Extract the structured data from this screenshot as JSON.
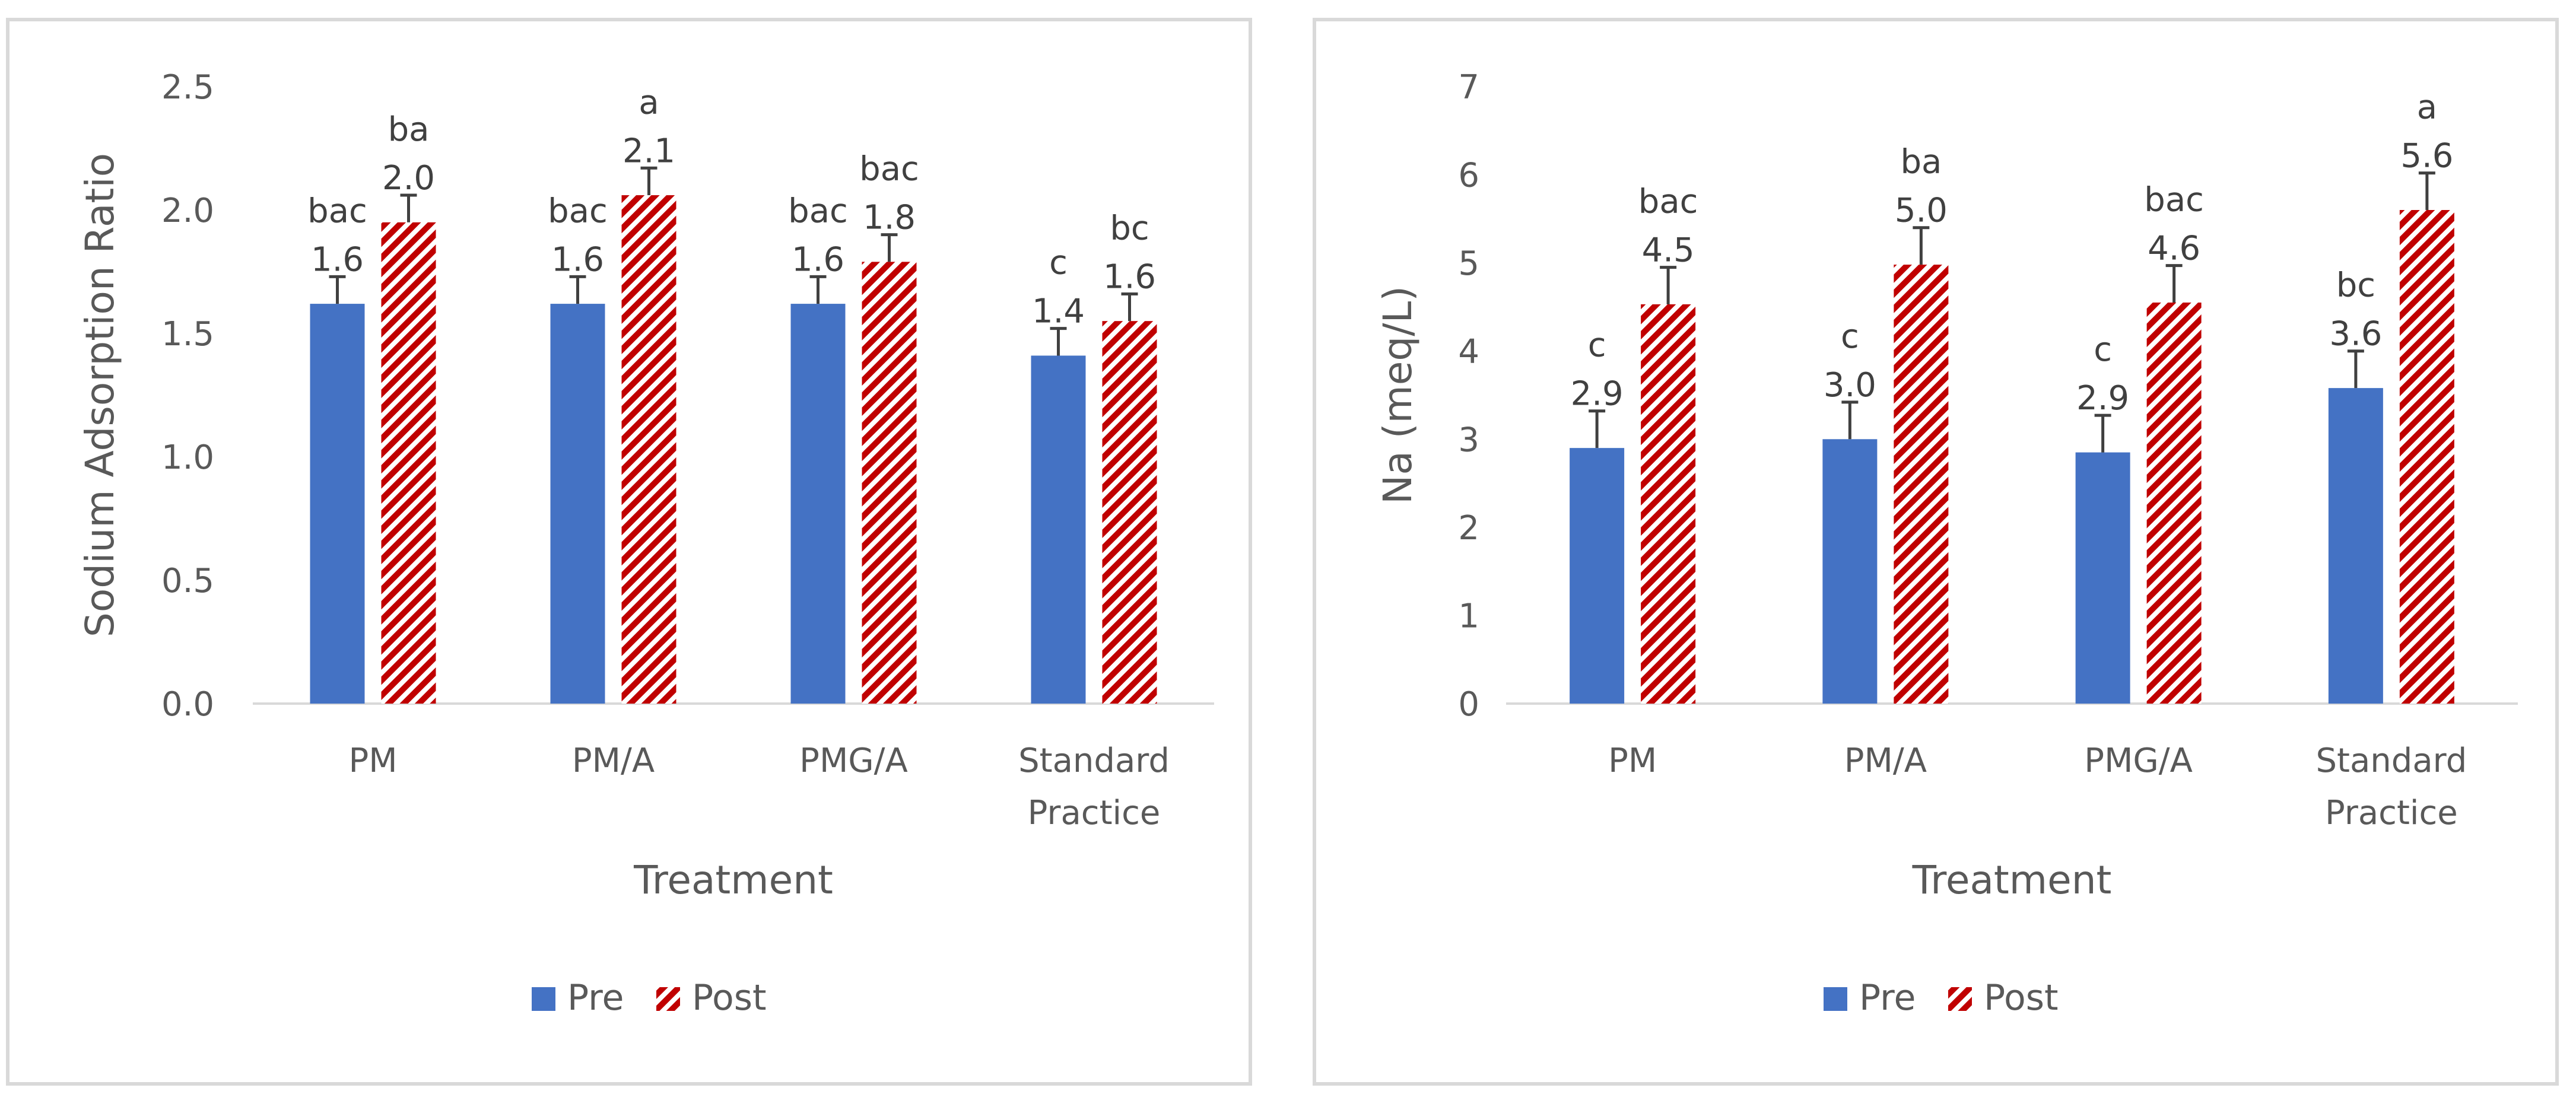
{
  "chart_data": [
    {
      "type": "bar",
      "title": "",
      "xlabel": "Treatment",
      "ylabel": "Sodium Adsorption Ratio",
      "ylim": [
        0,
        2.5
      ],
      "ytick_labels": [
        "0.0",
        "0.5",
        "1.0",
        "1.5",
        "2.0",
        "2.5"
      ],
      "categories": [
        [
          "PM"
        ],
        [
          "PM/A"
        ],
        [
          "PMG/A"
        ],
        [
          "Standard",
          "Practice"
        ]
      ],
      "series": [
        {
          "name": "Pre",
          "color": "#4472c4",
          "pattern": "solid",
          "values": [
            1.62,
            1.62,
            1.62,
            1.41
          ],
          "errors": [
            0.11,
            0.11,
            0.11,
            0.11
          ],
          "value_labels": [
            "1.6",
            "1.6",
            "1.6",
            "1.4"
          ],
          "significance": [
            "bac",
            "bac",
            "bac",
            "c"
          ]
        },
        {
          "name": "Post",
          "color": "#c00000",
          "pattern": "diagonal-stripes",
          "values": [
            1.95,
            2.06,
            1.79,
            1.55
          ],
          "errors": [
            0.11,
            0.11,
            0.11,
            0.11
          ],
          "value_labels": [
            "2.0",
            "2.1",
            "1.8",
            "1.6"
          ],
          "significance": [
            "ba",
            "a",
            "bac",
            "bc"
          ]
        }
      ],
      "legend": "bottom"
    },
    {
      "type": "bar",
      "title": "",
      "xlabel": "Treatment",
      "ylabel": "Na (meq/L)",
      "ylim": [
        0,
        7
      ],
      "ytick_labels": [
        "0",
        "1",
        "2",
        "3",
        "4",
        "5",
        "6",
        "7"
      ],
      "categories": [
        [
          "PM"
        ],
        [
          "PM/A"
        ],
        [
          "PMG/A"
        ],
        [
          "Standard",
          "Practice"
        ]
      ],
      "series": [
        {
          "name": "Pre",
          "color": "#4472c4",
          "pattern": "solid",
          "values": [
            2.9,
            3.0,
            2.85,
            3.58
          ],
          "errors": [
            0.42,
            0.42,
            0.42,
            0.42
          ],
          "value_labels": [
            "2.9",
            "3.0",
            "2.9",
            "3.6"
          ],
          "significance": [
            "c",
            "c",
            "c",
            "bc"
          ]
        },
        {
          "name": "Post",
          "color": "#c00000",
          "pattern": "diagonal-stripes",
          "values": [
            4.53,
            4.98,
            4.55,
            5.6
          ],
          "errors": [
            0.42,
            0.42,
            0.42,
            0.42
          ],
          "value_labels": [
            "4.5",
            "5.0",
            "4.6",
            "5.6"
          ],
          "significance": [
            "bac",
            "ba",
            "bac",
            "a"
          ]
        }
      ],
      "legend": "bottom"
    }
  ]
}
